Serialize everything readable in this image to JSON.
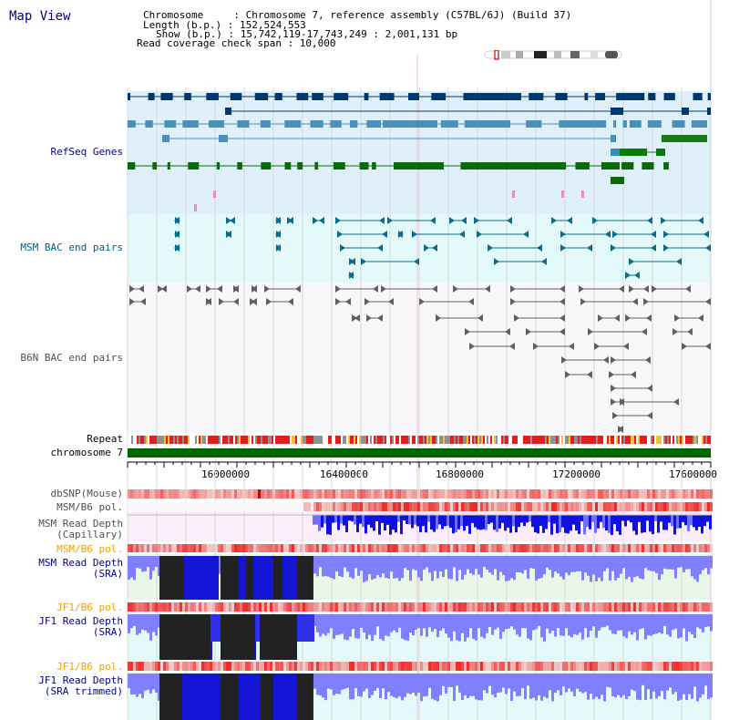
{
  "title": "Map View",
  "header": {
    "chromosome": "Chromosome     : Chromosome 7, reference assembly (C57BL/6J) (Build 37)",
    "length": "Length (b.p.) : 152,524,553",
    "show": "Show (b.p.) : 15,742,119-17,743,249 : 2,001,131 bp",
    "coverage": "Read coverage check span : 10,000"
  },
  "tracks": {
    "refseq": "RefSeq Genes",
    "msm_bac": "MSM BAC end pairs",
    "b6n_bac": "B6N BAC end pairs",
    "repeat": "Repeat",
    "chromosome": "chromosome 7",
    "dbsnp": "dbSNP(Mouse)",
    "msm_b6_pol_1": "MSM/B6 pol.",
    "msm_depth_cap": "MSM Read Depth\n(Capillary)",
    "msm_b6_pol_2": "MSM/B6 pol.",
    "msm_depth_sra": "MSM Read Depth\n(SRA)",
    "jf1_b6_pol_1": "JF1/B6 pol.",
    "jf1_depth_sra": "JF1 Read Depth\n(SRA)",
    "jf1_b6_pol_2": "JF1/B6 pol.",
    "jf1_depth_trim": "JF1 Read Depth\n(SRA trimmed)"
  },
  "axis": {
    "ticks": [
      "16000000",
      "16400000",
      "16800000",
      "17200000",
      "17600000"
    ]
  },
  "colors": {
    "title_blue": "#000080",
    "label_blue": "#00008b",
    "label_teal": "#006080",
    "label_gray": "#505050",
    "label_orange": "#f0a000",
    "refseq_bg": "#dff0fa",
    "msm_bg": "#e4fafa",
    "pol_red": "#e83030",
    "depth_blue": "#0000ee",
    "chrom_green": "#006400"
  }
}
